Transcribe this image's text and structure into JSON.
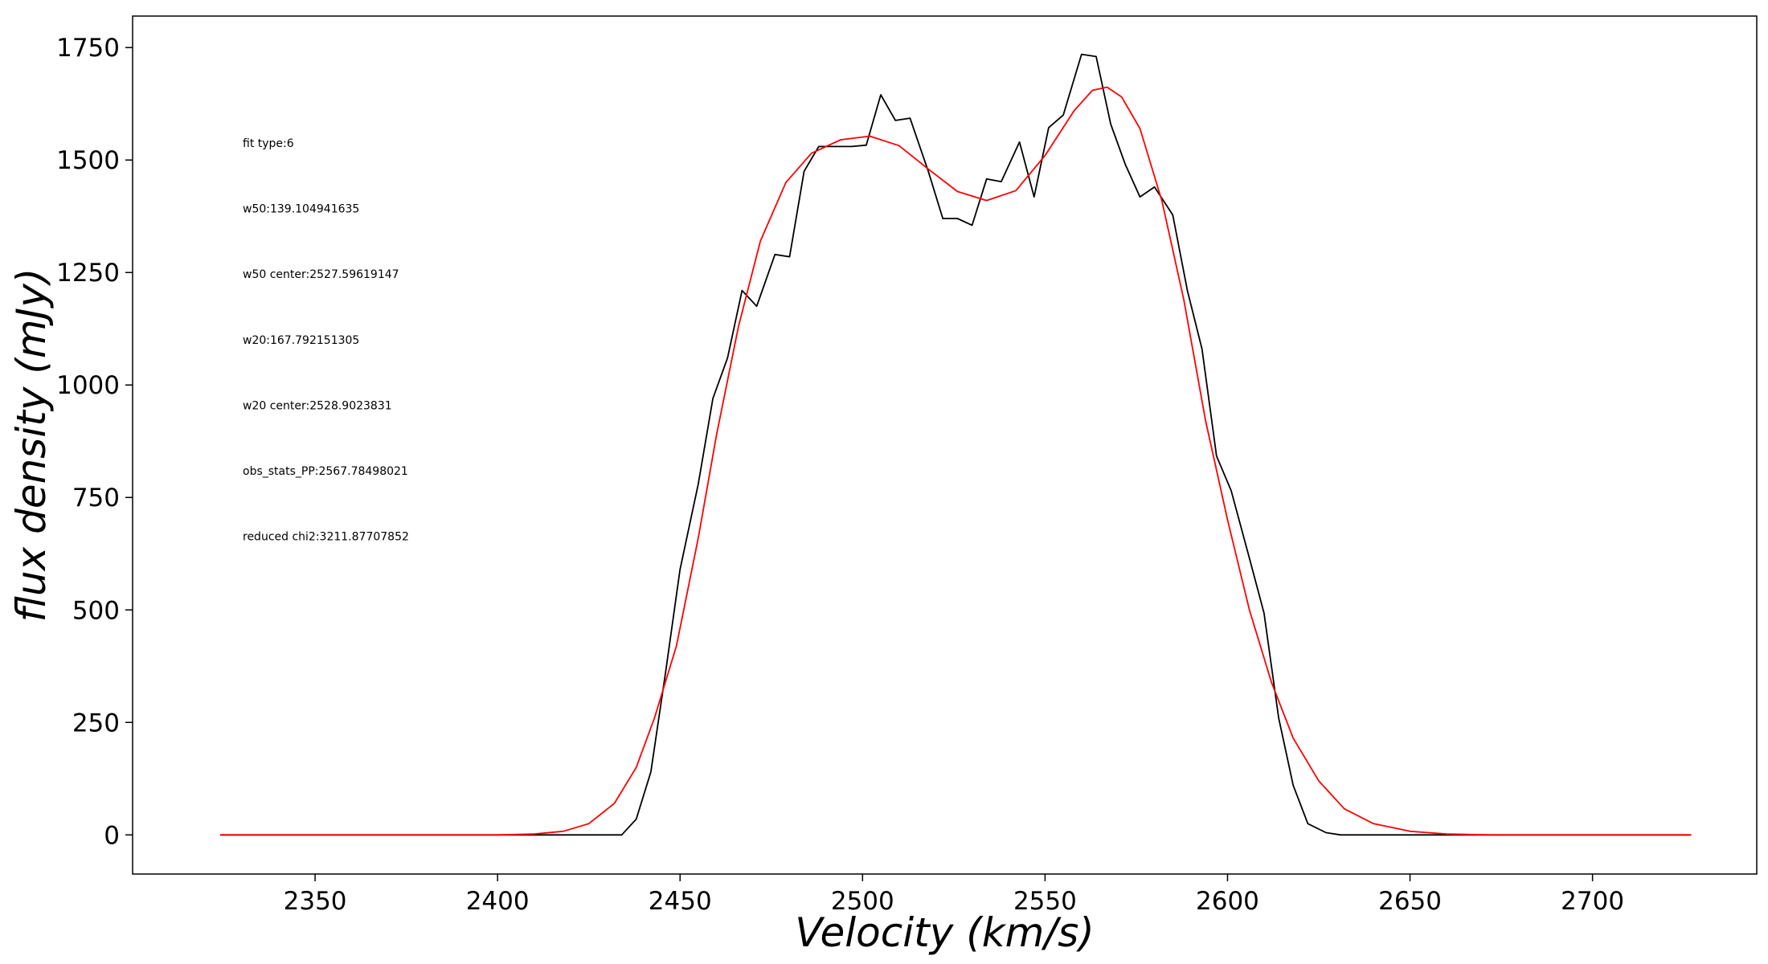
{
  "chart_data": {
    "type": "line",
    "xlabel": "Velocity (km/s)",
    "ylabel": "flux density (mJy)",
    "xlim": [
      2300,
      2745
    ],
    "ylim": [
      -87,
      1820
    ],
    "x_ticks": [
      2350,
      2400,
      2450,
      2500,
      2550,
      2600,
      2650,
      2700
    ],
    "y_ticks": [
      0,
      250,
      500,
      750,
      1000,
      1250,
      1500,
      1750
    ],
    "grid": false,
    "annotations": [
      "fit type:6",
      "w50:139.104941635",
      "w50 center:2527.59619147",
      "w20:167.792151305",
      "w20 center:2528.9023831",
      "obs_stats_PP:2567.78498021",
      "reduced chi2:3211.87707852"
    ],
    "series": [
      {
        "color": "#000000",
        "points": [
          [
            2324,
            0
          ],
          [
            2434,
            0
          ],
          [
            2438,
            35
          ],
          [
            2442,
            140
          ],
          [
            2446,
            360
          ],
          [
            2450,
            590
          ],
          [
            2455,
            780
          ],
          [
            2459,
            970
          ],
          [
            2463,
            1060
          ],
          [
            2467,
            1210
          ],
          [
            2471,
            1175
          ],
          [
            2476,
            1290
          ],
          [
            2480,
            1285
          ],
          [
            2484,
            1475
          ],
          [
            2488,
            1530
          ],
          [
            2492,
            1530
          ],
          [
            2497,
            1530
          ],
          [
            2501,
            1533
          ],
          [
            2505,
            1645
          ],
          [
            2509,
            1588
          ],
          [
            2513,
            1593
          ],
          [
            2518,
            1475
          ],
          [
            2522,
            1370
          ],
          [
            2526,
            1370
          ],
          [
            2530,
            1355
          ],
          [
            2534,
            1458
          ],
          [
            2538,
            1452
          ],
          [
            2543,
            1540
          ],
          [
            2547,
            1418
          ],
          [
            2551,
            1572
          ],
          [
            2555,
            1600
          ],
          [
            2560,
            1735
          ],
          [
            2564,
            1730
          ],
          [
            2568,
            1580
          ],
          [
            2572,
            1490
          ],
          [
            2576,
            1418
          ],
          [
            2580,
            1440
          ],
          [
            2585,
            1378
          ],
          [
            2589,
            1210
          ],
          [
            2593,
            1080
          ],
          [
            2597,
            842
          ],
          [
            2601,
            765
          ],
          [
            2606,
            615
          ],
          [
            2610,
            493
          ],
          [
            2614,
            260
          ],
          [
            2618,
            110
          ],
          [
            2622,
            25
          ],
          [
            2627,
            5
          ],
          [
            2631,
            0
          ],
          [
            2727,
            0
          ]
        ]
      },
      {
        "color": "#ff0000",
        "points": [
          [
            2324,
            0
          ],
          [
            2400,
            0
          ],
          [
            2410,
            2
          ],
          [
            2418,
            8
          ],
          [
            2425,
            25
          ],
          [
            2432,
            70
          ],
          [
            2438,
            150
          ],
          [
            2443,
            260
          ],
          [
            2449,
            420
          ],
          [
            2455,
            660
          ],
          [
            2460,
            890
          ],
          [
            2466,
            1130
          ],
          [
            2472,
            1320
          ],
          [
            2479,
            1450
          ],
          [
            2486,
            1515
          ],
          [
            2494,
            1545
          ],
          [
            2502,
            1553
          ],
          [
            2510,
            1532
          ],
          [
            2518,
            1480
          ],
          [
            2526,
            1430
          ],
          [
            2534,
            1410
          ],
          [
            2542,
            1432
          ],
          [
            2550,
            1510
          ],
          [
            2558,
            1610
          ],
          [
            2563,
            1655
          ],
          [
            2567,
            1662
          ],
          [
            2571,
            1640
          ],
          [
            2576,
            1570
          ],
          [
            2582,
            1410
          ],
          [
            2588,
            1190
          ],
          [
            2594,
            920
          ],
          [
            2600,
            700
          ],
          [
            2606,
            500
          ],
          [
            2612,
            340
          ],
          [
            2618,
            215
          ],
          [
            2625,
            120
          ],
          [
            2632,
            58
          ],
          [
            2640,
            25
          ],
          [
            2650,
            8
          ],
          [
            2660,
            2
          ],
          [
            2672,
            0
          ],
          [
            2727,
            0
          ]
        ]
      }
    ]
  }
}
